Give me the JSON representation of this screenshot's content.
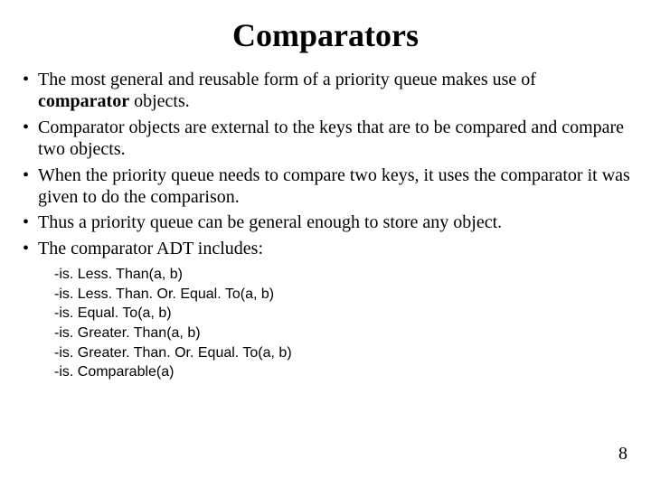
{
  "title": "Comparators",
  "bullets": {
    "b1a": "The most general and reusable form of a priority queue makes use of ",
    "b1b": "comparator",
    "b1c": " objects.",
    "b2": "Comparator objects are external to the keys that are to be compared and compare two objects.",
    "b3": "When the priority queue needs to compare two keys, it uses the comparator it was given to do the comparison.",
    "b4": "Thus a priority queue can be general enough to store any object.",
    "b5": "The comparator ADT includes:"
  },
  "methods": {
    "m1": "-is. Less. Than(a, b)",
    "m2": "-is. Less. Than. Or. Equal. To(a, b)",
    "m3": "-is. Equal. To(a, b)",
    "m4": "-is. Greater. Than(a, b)",
    "m5": "-is. Greater. Than. Or. Equal. To(a, b)",
    "m6": "-is. Comparable(a)"
  },
  "page": "8",
  "colors": {
    "background": "#ffffff",
    "text": "#000000"
  },
  "typography": {
    "title_fontsize": 36,
    "body_fontsize": 20,
    "methods_fontsize": 16,
    "body_font": "Times New Roman",
    "methods_font": "Arial"
  }
}
